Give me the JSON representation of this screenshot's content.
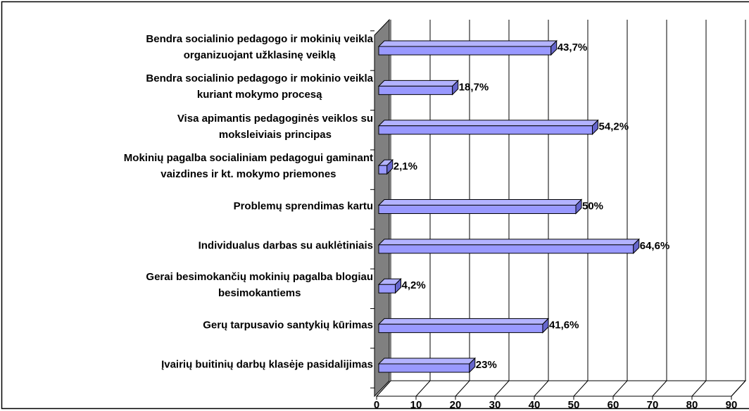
{
  "chart_data": {
    "type": "bar3d_horizontal",
    "categories": [
      "Bendra socialinio pedagogo ir mokinių veikla\norganizuojant užklasinę veiklą",
      "Bendra socialinio pedagogo ir mokinio veikla\nkuriant mokymo procesą",
      "Visa apimantis pedagoginės veiklos su\nmoksleiviais principas",
      "Mokinių pagalba socialiniam pedagogui gaminant\nvaizdines ir kt. mokymo priemones",
      "Problemų sprendimas kartu",
      "Individualus darbas su auklėtiniais",
      "Gerai besimokančių mokinių pagalba blogiau\nbesimokantiems",
      "Gerų tarpusavio santykių kūrimas ",
      "Įvairių buitinių darbų klasėje pasidalijimas"
    ],
    "values": [
      43.7,
      18.7,
      54.2,
      2.1,
      50,
      64.6,
      4.2,
      41.6,
      23
    ],
    "value_labels": [
      "43,7%",
      "18,7%",
      "54,2%",
      "2,1%",
      "50%",
      "64,6%",
      "4,2%",
      "41,6%",
      "23%"
    ],
    "color": "#9999ff",
    "xlim": [
      0,
      90
    ],
    "xticks": [
      0,
      10,
      20,
      30,
      40,
      50,
      60,
      70,
      80,
      90
    ],
    "grid": true
  }
}
